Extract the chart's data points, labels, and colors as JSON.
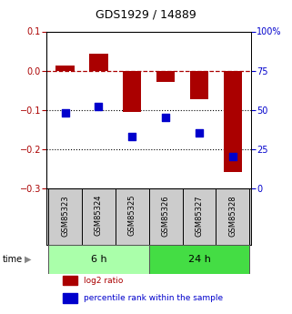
{
  "title": "GDS1929 / 14889",
  "samples": [
    "GSM85323",
    "GSM85324",
    "GSM85325",
    "GSM85326",
    "GSM85327",
    "GSM85328"
  ],
  "log2_ratio": [
    0.012,
    0.042,
    -0.105,
    -0.028,
    -0.072,
    -0.26
  ],
  "percentile_rank": [
    48,
    52,
    33,
    45,
    35,
    20
  ],
  "groups": [
    {
      "label": "6 h",
      "indices": [
        0,
        1,
        2
      ],
      "color": "#aaffaa"
    },
    {
      "label": "24 h",
      "indices": [
        3,
        4,
        5
      ],
      "color": "#44dd44"
    }
  ],
  "left_ylim": [
    -0.3,
    0.1
  ],
  "right_ylim": [
    0,
    100
  ],
  "left_yticks": [
    -0.3,
    -0.2,
    -0.1,
    0.0,
    0.1
  ],
  "right_yticks": [
    0,
    25,
    50,
    75,
    100
  ],
  "right_ytick_labels": [
    "0",
    "25",
    "50",
    "75",
    "100%"
  ],
  "hline_y": 0.0,
  "dotted_lines": [
    -0.1,
    -0.2
  ],
  "bar_color": "#aa0000",
  "point_color": "#0000cc",
  "bar_width": 0.55,
  "point_size": 28,
  "background_color": "#ffffff",
  "legend_items": [
    {
      "label": "log2 ratio",
      "color": "#aa0000"
    },
    {
      "label": "percentile rank within the sample",
      "color": "#0000cc"
    }
  ],
  "label_row_color": "#cccccc",
  "title_fontsize": 9,
  "tick_fontsize": 7,
  "sample_fontsize": 6,
  "group_fontsize": 8
}
